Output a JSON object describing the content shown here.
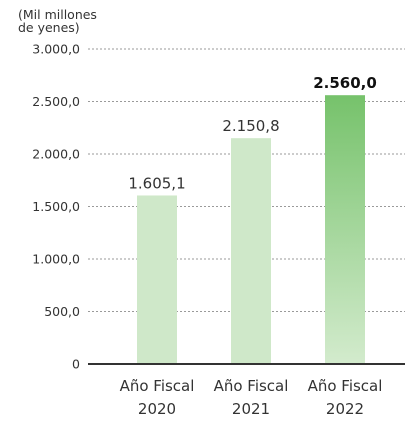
{
  "chart_data": {
    "type": "bar",
    "unit_label": [
      "(Mil millones",
      "de yenes)"
    ],
    "categories": [
      [
        "Año Fiscal",
        "2020"
      ],
      [
        "Año Fiscal",
        "2021"
      ],
      [
        "Año Fiscal",
        "2022"
      ]
    ],
    "values": [
      1605.1,
      2150.8,
      2560.0
    ],
    "value_labels": [
      "1.605,1",
      "2.150,8",
      "2.560,0"
    ],
    "highlight_index": 2,
    "y_ticks": [
      0,
      500,
      1000,
      1500,
      2000,
      2500,
      3000
    ],
    "y_tick_labels": [
      "0",
      "500,0",
      "1.000,0",
      "1.500,0",
      "2.000,0",
      "2.500,0",
      "3.000,0"
    ],
    "ylim": [
      0,
      3000
    ],
    "grid": true,
    "colors": {
      "bar": "#cfe8c9",
      "highlight_top": "#76c26b",
      "highlight_bottom": "#d3ebcd",
      "grid": "#9a9a9a",
      "axis": "#333333",
      "text": "#333333"
    }
  }
}
